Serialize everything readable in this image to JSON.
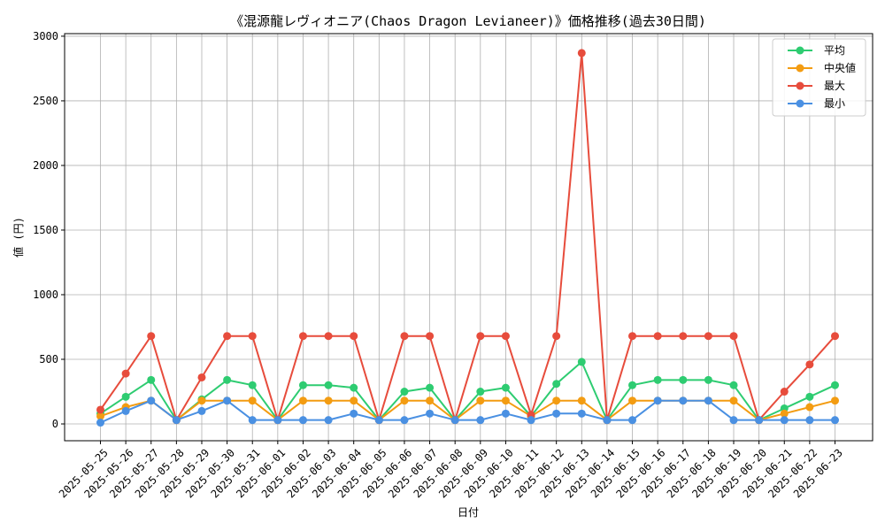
{
  "chart_data": {
    "type": "line",
    "title": "《混源龍レヴィオニア(Chaos Dragon Levianeer)》価格推移(過去30日間)",
    "xlabel": "日付",
    "ylabel": "値 (円)",
    "ylim": [
      -130,
      3020
    ],
    "yticks": [
      0,
      500,
      1000,
      1500,
      2000,
      2500,
      3000
    ],
    "grid": true,
    "legend_position": "top-right",
    "categories": [
      "2025-05-25",
      "2025-05-26",
      "2025-05-27",
      "2025-05-28",
      "2025-05-29",
      "2025-05-30",
      "2025-05-31",
      "2025-06-01",
      "2025-06-02",
      "2025-06-03",
      "2025-06-04",
      "2025-06-05",
      "2025-06-06",
      "2025-06-07",
      "2025-06-08",
      "2025-06-09",
      "2025-06-10",
      "2025-06-11",
      "2025-06-12",
      "2025-06-13",
      "2025-06-14",
      "2025-06-15",
      "2025-06-16",
      "2025-06-17",
      "2025-06-18",
      "2025-06-19",
      "2025-06-20",
      "2025-06-21",
      "2025-06-22",
      "2025-06-23"
    ],
    "series": [
      {
        "name": "平均",
        "color": "#2ecc71",
        "values": [
          80,
          210,
          340,
          30,
          190,
          340,
          300,
          30,
          300,
          300,
          280,
          30,
          250,
          280,
          30,
          250,
          280,
          60,
          310,
          480,
          30,
          300,
          340,
          340,
          340,
          300,
          30,
          120,
          210,
          300
        ]
      },
      {
        "name": "中央値",
        "color": "#f39c12",
        "values": [
          60,
          130,
          180,
          30,
          180,
          180,
          180,
          30,
          180,
          180,
          180,
          30,
          180,
          180,
          30,
          180,
          180,
          60,
          180,
          180,
          30,
          180,
          180,
          180,
          180,
          180,
          30,
          80,
          130,
          180
        ]
      },
      {
        "name": "最大",
        "color": "#e74c3c",
        "values": [
          110,
          390,
          680,
          30,
          360,
          680,
          680,
          30,
          680,
          680,
          680,
          30,
          680,
          680,
          30,
          680,
          680,
          70,
          680,
          2870,
          30,
          680,
          680,
          680,
          680,
          680,
          30,
          250,
          460,
          680
        ]
      },
      {
        "name": "最小",
        "color": "#4a90e2",
        "values": [
          10,
          100,
          180,
          30,
          100,
          180,
          30,
          30,
          30,
          30,
          80,
          30,
          30,
          80,
          30,
          30,
          80,
          30,
          80,
          80,
          30,
          30,
          180,
          180,
          180,
          30,
          30,
          30,
          30,
          30
        ]
      }
    ]
  }
}
